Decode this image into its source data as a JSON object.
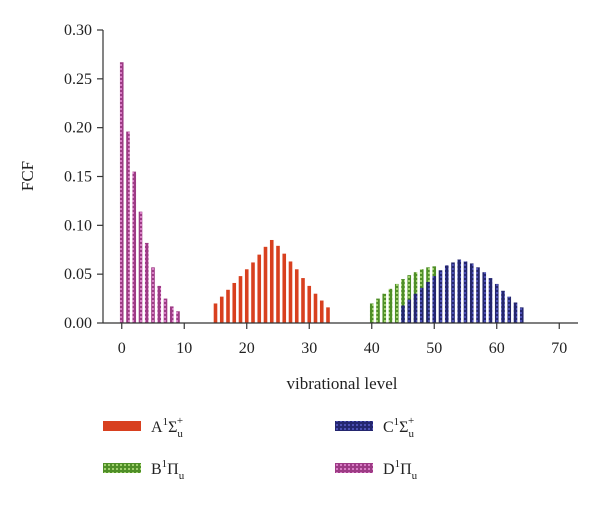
{
  "chart_data": {
    "type": "bar",
    "xlabel": "vibrational level",
    "ylabel": "FCF",
    "xlim": [
      -3,
      73
    ],
    "ylim": [
      0,
      0.3
    ],
    "xticks": [
      0,
      10,
      20,
      30,
      40,
      50,
      60,
      70
    ],
    "xtick_labels": [
      "0",
      "10",
      "20",
      "30",
      "40",
      "50",
      "60",
      "70"
    ],
    "yticks": [
      0,
      0.05,
      0.1,
      0.15,
      0.2,
      0.25,
      0.3
    ],
    "ytick_labels": [
      "0.00",
      "0.05",
      "0.10",
      "0.15",
      "0.20",
      "0.25",
      "0.30"
    ],
    "grid": false,
    "legend_placement": "bottom",
    "series": [
      {
        "name": "A1Σu+",
        "legend": {
          "main": "A",
          "sup1": "1",
          "greek": "Σ",
          "sub": "u",
          "sup2": "+"
        },
        "color": "#d8401f",
        "pattern": "solid",
        "x": [
          15,
          16,
          17,
          18,
          19,
          20,
          21,
          22,
          23,
          24,
          25,
          26,
          27,
          28,
          29,
          30,
          31,
          32,
          33
        ],
        "values": [
          0.02,
          0.027,
          0.034,
          0.041,
          0.048,
          0.055,
          0.062,
          0.07,
          0.078,
          0.085,
          0.079,
          0.071,
          0.063,
          0.055,
          0.046,
          0.038,
          0.03,
          0.023,
          0.016
        ]
      },
      {
        "name": "B1Πu",
        "legend": {
          "main": "B",
          "sup1": "1",
          "greek": "Π",
          "sub": "u",
          "sup2": ""
        },
        "color": "#6fb33f",
        "pattern": "dotted",
        "x": [
          40,
          41,
          42,
          43,
          44,
          45,
          46,
          47,
          48,
          49,
          50
        ],
        "values": [
          0.02,
          0.025,
          0.03,
          0.035,
          0.04,
          0.045,
          0.049,
          0.052,
          0.055,
          0.057,
          0.058
        ]
      },
      {
        "name": "C1Σu+",
        "legend": {
          "main": "C",
          "sup1": "1",
          "greek": "Σ",
          "sub": "u",
          "sup2": "+"
        },
        "color": "#2d2f8f",
        "pattern": "dotted",
        "x": [
          45,
          46,
          47,
          48,
          49,
          50,
          51,
          52,
          53,
          54,
          55,
          56,
          57,
          58,
          59,
          60,
          61,
          62,
          63,
          64
        ],
        "values": [
          0.018,
          0.024,
          0.03,
          0.036,
          0.042,
          0.048,
          0.054,
          0.059,
          0.062,
          0.065,
          0.063,
          0.061,
          0.057,
          0.052,
          0.046,
          0.04,
          0.033,
          0.027,
          0.021,
          0.016
        ]
      },
      {
        "name": "D1Πu",
        "legend": {
          "main": "D",
          "sup1": "1",
          "greek": "Π",
          "sub": "u",
          "sup2": ""
        },
        "color": "#b84a9e",
        "pattern": "dotted",
        "x": [
          0,
          1,
          2,
          3,
          4,
          5,
          6,
          7,
          8,
          9
        ],
        "values": [
          0.267,
          0.196,
          0.155,
          0.114,
          0.082,
          0.057,
          0.038,
          0.025,
          0.017,
          0.012
        ]
      }
    ]
  }
}
